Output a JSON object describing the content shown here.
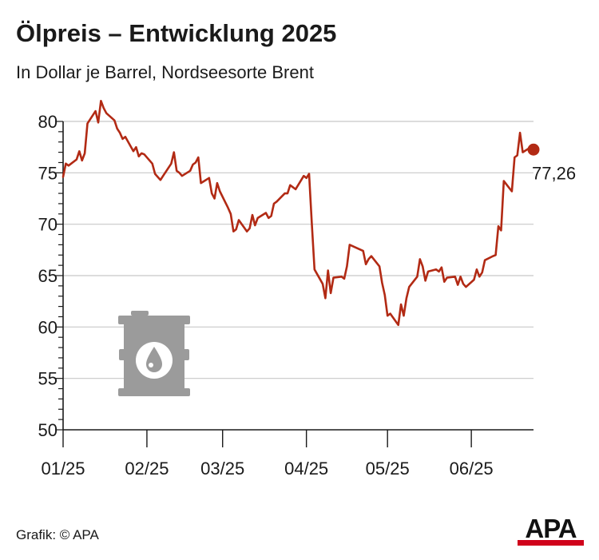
{
  "title": "Ölpreis – Entwicklung 2025",
  "subtitle": "In Dollar je Barrel, Nordseesorte Brent",
  "footer": {
    "credit": "Grafik: © APA",
    "logo_text": "APA"
  },
  "colors": {
    "line": "#b22a14",
    "grid": "#c8c8c8",
    "axis": "#1a1a1a",
    "icon": "#9b9b9b",
    "logo_red": "#d0021b"
  },
  "icon": "oil-barrel-icon",
  "chart_data": {
    "type": "line",
    "title": "Ölpreis – Entwicklung 2025",
    "subtitle": "In Dollar je Barrel, Nordseesorte Brent",
    "xlabel": "",
    "ylabel": "",
    "ylim": [
      50,
      80
    ],
    "yticks": [
      50,
      55,
      60,
      65,
      70,
      75,
      80
    ],
    "xlim": [
      "2025-01-01",
      "2025-06-24"
    ],
    "xticks": [
      {
        "date": "2025-01-01",
        "label": "01/25"
      },
      {
        "date": "2025-02-01",
        "label": "02/25"
      },
      {
        "date": "2025-03-01",
        "label": "03/25"
      },
      {
        "date": "2025-04-01",
        "label": "04/25"
      },
      {
        "date": "2025-05-01",
        "label": "05/25"
      },
      {
        "date": "2025-06-01",
        "label": "06/25"
      }
    ],
    "grid": true,
    "last_value_label": "77,26",
    "last_value": 77.26,
    "series": [
      {
        "x": [
          "2025-01-01",
          "2025-01-02",
          "2025-01-03",
          "2025-01-06",
          "2025-01-07",
          "2025-01-08",
          "2025-01-09",
          "2025-01-10",
          "2025-01-13",
          "2025-01-14",
          "2025-01-15",
          "2025-01-16",
          "2025-01-17",
          "2025-01-20",
          "2025-01-21",
          "2025-01-22",
          "2025-01-23",
          "2025-01-24",
          "2025-01-27",
          "2025-01-28",
          "2025-01-29",
          "2025-01-30",
          "2025-01-31",
          "2025-02-03",
          "2025-02-04",
          "2025-02-05",
          "2025-02-06",
          "2025-02-07",
          "2025-02-10",
          "2025-02-11",
          "2025-02-12",
          "2025-02-13",
          "2025-02-14",
          "2025-02-17",
          "2025-02-18",
          "2025-02-19",
          "2025-02-20",
          "2025-02-21",
          "2025-02-24",
          "2025-02-25",
          "2025-02-26",
          "2025-02-27",
          "2025-02-28",
          "2025-03-03",
          "2025-03-04",
          "2025-03-05",
          "2025-03-06",
          "2025-03-07",
          "2025-03-10",
          "2025-03-11",
          "2025-03-12",
          "2025-03-13",
          "2025-03-14",
          "2025-03-17",
          "2025-03-18",
          "2025-03-19",
          "2025-03-20",
          "2025-03-21",
          "2025-03-24",
          "2025-03-25",
          "2025-03-26",
          "2025-03-27",
          "2025-03-28",
          "2025-03-31",
          "2025-04-01",
          "2025-04-02",
          "2025-04-03",
          "2025-04-04",
          "2025-04-07",
          "2025-04-08",
          "2025-04-09",
          "2025-04-10",
          "2025-04-11",
          "2025-04-14",
          "2025-04-15",
          "2025-04-16",
          "2025-04-17",
          "2025-04-22",
          "2025-04-23",
          "2025-04-24",
          "2025-04-25",
          "2025-04-28",
          "2025-04-29",
          "2025-04-30",
          "2025-05-01",
          "2025-05-02",
          "2025-05-05",
          "2025-05-06",
          "2025-05-07",
          "2025-05-08",
          "2025-05-09",
          "2025-05-12",
          "2025-05-13",
          "2025-05-14",
          "2025-05-15",
          "2025-05-16",
          "2025-05-19",
          "2025-05-20",
          "2025-05-21",
          "2025-05-22",
          "2025-05-23",
          "2025-05-26",
          "2025-05-27",
          "2025-05-28",
          "2025-05-29",
          "2025-05-30",
          "2025-06-02",
          "2025-06-03",
          "2025-06-04",
          "2025-06-05",
          "2025-06-06",
          "2025-06-09",
          "2025-06-10",
          "2025-06-11",
          "2025-06-12",
          "2025-06-13",
          "2025-06-16",
          "2025-06-17",
          "2025-06-18",
          "2025-06-19",
          "2025-06-20",
          "2025-06-23",
          "2025-06-24"
        ],
        "y": [
          74.6,
          75.9,
          75.7,
          76.3,
          77.1,
          76.2,
          76.9,
          79.8,
          81.0,
          79.9,
          82.0,
          81.3,
          80.8,
          80.1,
          79.3,
          78.9,
          78.3,
          78.5,
          77.1,
          77.5,
          76.6,
          76.9,
          76.8,
          75.9,
          74.9,
          74.6,
          74.3,
          74.7,
          75.9,
          77.0,
          75.2,
          75.0,
          74.7,
          75.2,
          75.8,
          76.0,
          76.5,
          74.0,
          74.5,
          73.0,
          72.5,
          74.0,
          73.2,
          71.6,
          71.0,
          69.3,
          69.5,
          70.4,
          69.3,
          69.6,
          70.9,
          69.9,
          70.6,
          71.1,
          70.6,
          70.8,
          72.0,
          72.2,
          73.0,
          73.0,
          73.8,
          73.6,
          73.4,
          74.7,
          74.5,
          74.9,
          70.1,
          65.6,
          64.2,
          62.8,
          65.5,
          63.3,
          64.8,
          64.9,
          64.7,
          65.9,
          68.0,
          67.4,
          66.1,
          66.6,
          66.9,
          65.9,
          64.3,
          63.1,
          61.1,
          61.3,
          60.2,
          62.2,
          61.1,
          62.8,
          63.9,
          64.9,
          66.6,
          65.9,
          64.5,
          65.4,
          65.6,
          65.4,
          65.8,
          64.4,
          64.8,
          64.9,
          64.1,
          64.9,
          64.2,
          63.9,
          64.6,
          65.6,
          64.9,
          65.3,
          66.5,
          66.9,
          67.0,
          69.8,
          69.4,
          74.2,
          73.2,
          76.5,
          76.7,
          78.9,
          77.0,
          77.5,
          77.3
        ]
      }
    ]
  }
}
